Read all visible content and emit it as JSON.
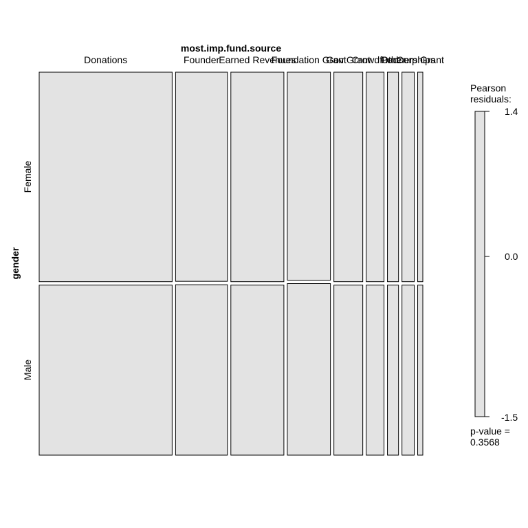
{
  "chart_data": {
    "type": "mosaic",
    "x_variable": "most.imp.fund.source",
    "y_variable": "gender",
    "categories": [
      "Donations",
      "Founder",
      "Earned Revenues",
      "Foundation Grant",
      "Gov Grant",
      "Crowdfund",
      "Other",
      "Partnerships",
      "Corp Grant"
    ],
    "category_labels_printed": [
      "Donations",
      "Founder",
      "Earned Revenues",
      "Foundation Grant",
      "Gov Grant",
      "Crowdfund",
      "Other",
      "Partnerships",
      "Corp Grant"
    ],
    "rows": [
      "Female",
      "Male"
    ],
    "column_widths": [
      0.336,
      0.131,
      0.134,
      0.109,
      0.073,
      0.045,
      0.028,
      0.031,
      0.013
    ],
    "female_share": [
      0.552,
      0.551,
      0.552,
      0.548,
      0.552,
      0.552,
      0.552,
      0.552,
      0.552
    ],
    "legend": {
      "title_line1": "Pearson",
      "title_line2": "residuals:",
      "max": 1.4,
      "mid": 0.0,
      "min": -1.5,
      "max_label": "1.4",
      "mid_label": "0.0",
      "min_label": "-1.5",
      "pvalue_line1": "p-value =",
      "pvalue_line2": "0.3568"
    },
    "fill_color": "#e3e3e3",
    "border_color": "#000000"
  }
}
